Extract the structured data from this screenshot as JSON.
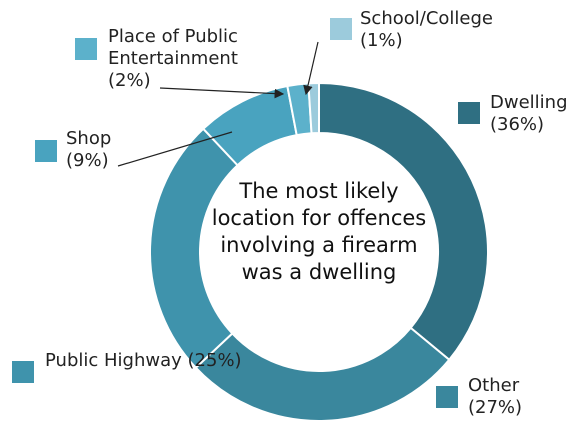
{
  "chart_data": {
    "type": "donut",
    "categories": [
      "Dwelling",
      "Other",
      "Public Highway",
      "Shop",
      "Place of Public Entertainment",
      "School/College"
    ],
    "values": [
      36,
      27,
      25,
      9,
      2,
      1
    ],
    "value_labels": [
      "(36%)",
      "(27%)",
      "(25%)",
      "(9%)",
      "(2%)",
      "(1%)"
    ],
    "colors": [
      "#2f6f82",
      "#3a879d",
      "#3f93ac",
      "#49a3bf",
      "#5cb1cb",
      "#9ccbdc"
    ],
    "annotation": "The most likely location for offences involving a firearm was a dwelling"
  }
}
